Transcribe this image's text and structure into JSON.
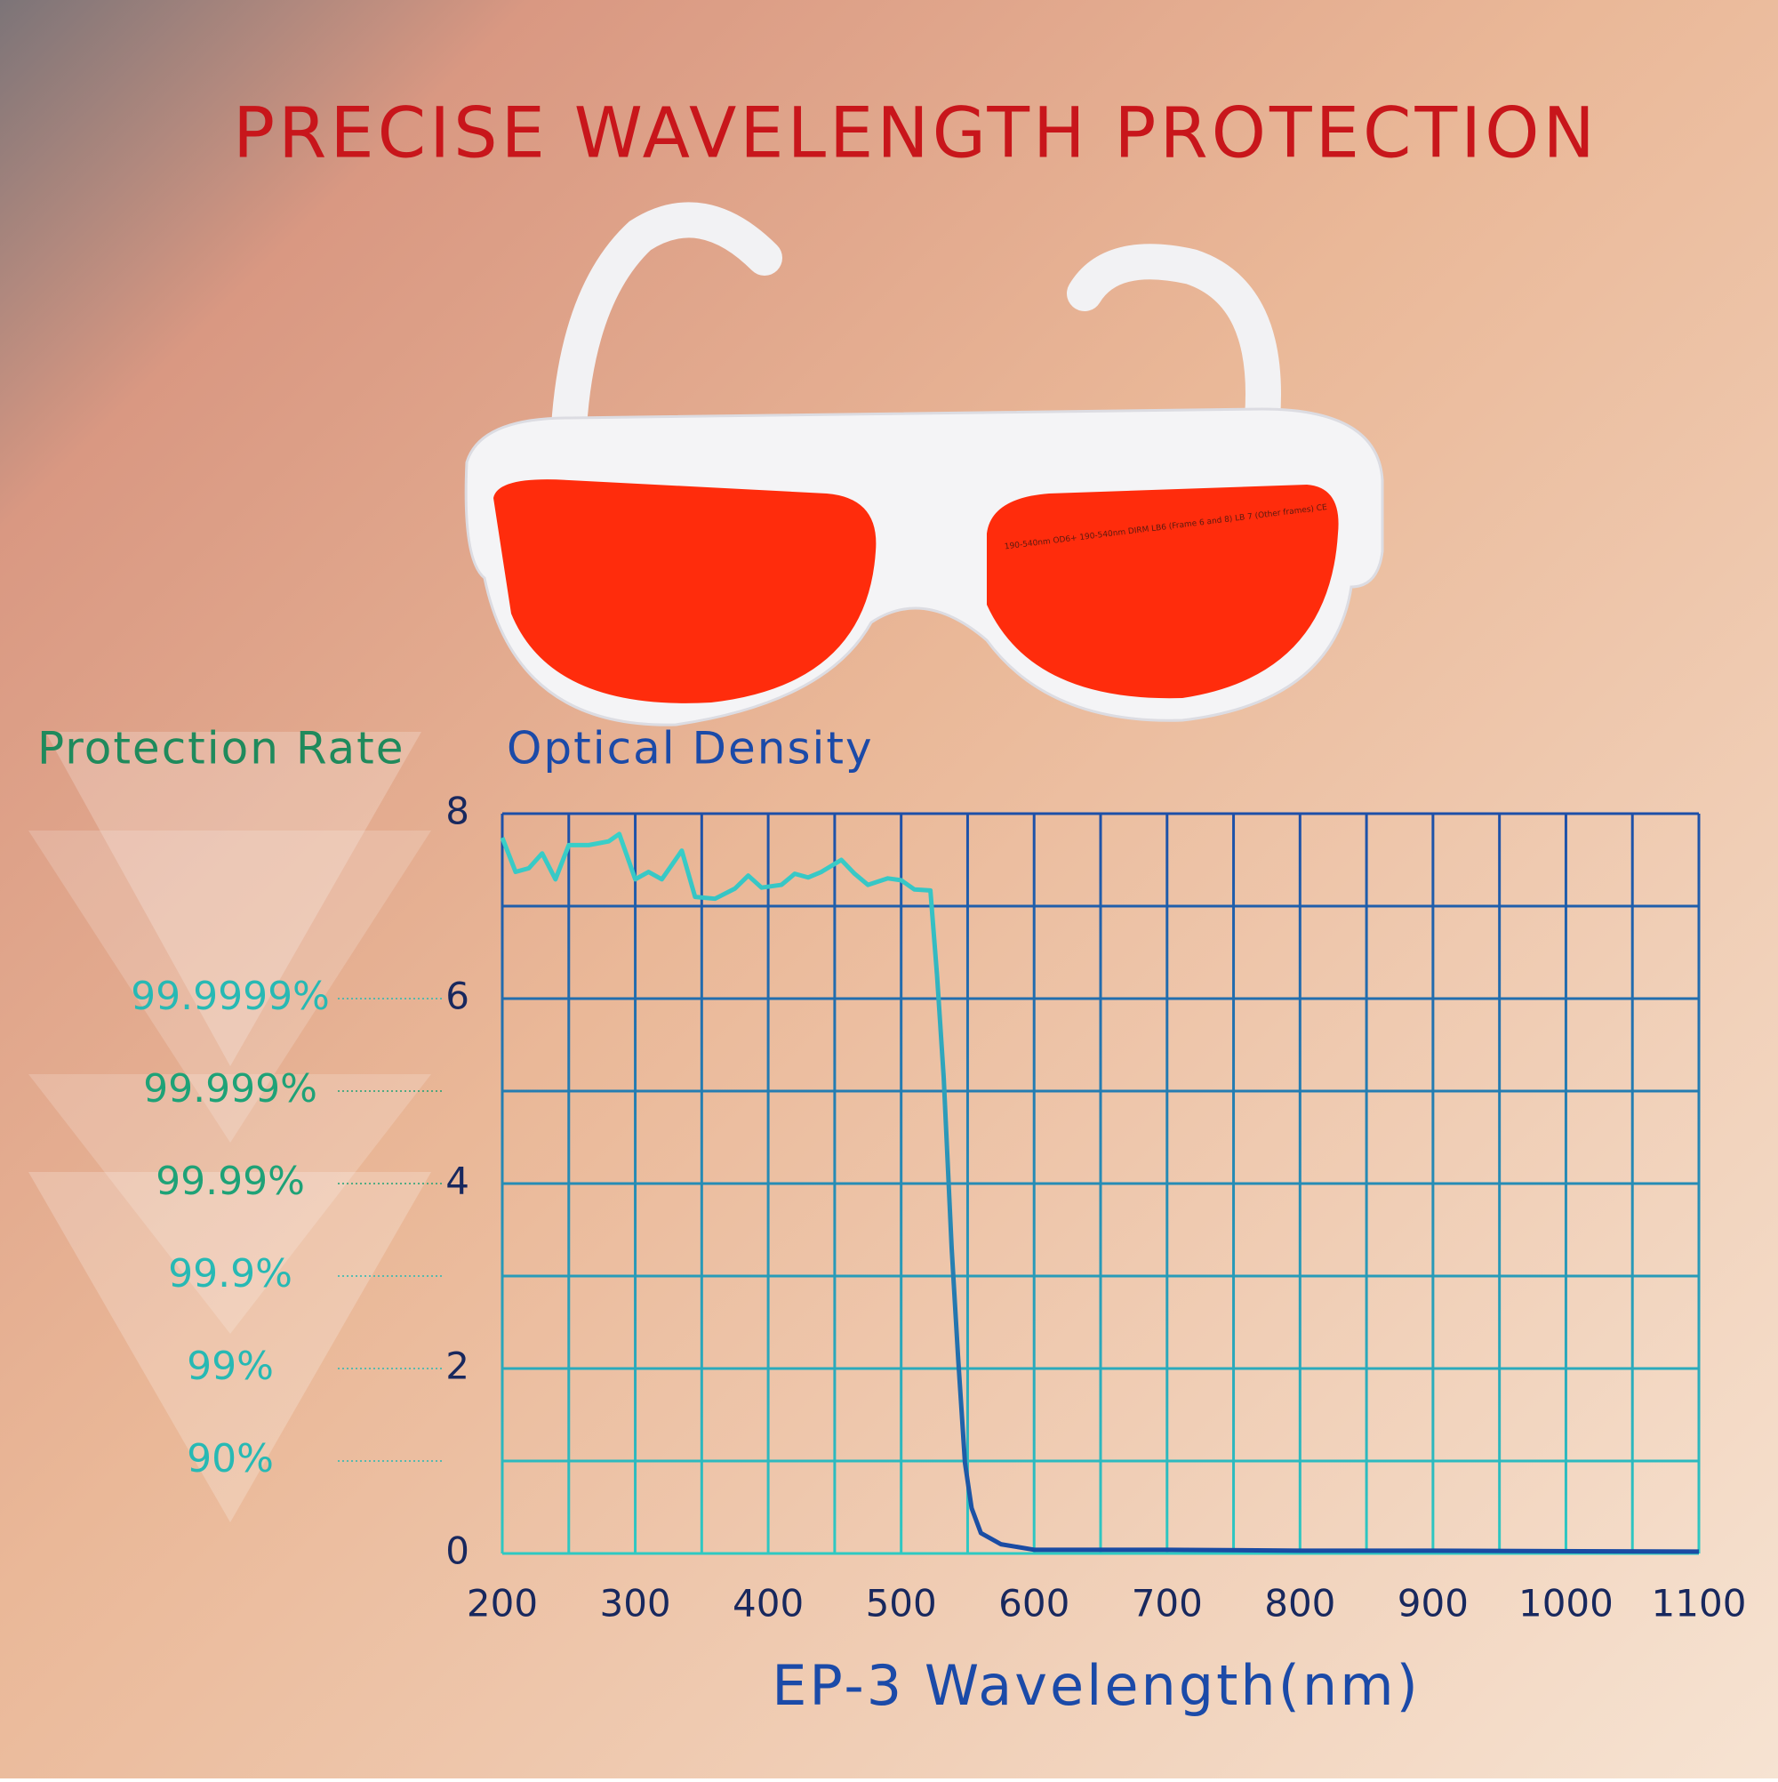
{
  "product": {
    "lens_marking": "190-540nm OD6+ 190-540nm DIRM LB6 (Frame 6 and 8) LB 7 (Other frames) CE"
  },
  "chart_data": {
    "type": "line",
    "title": "PRECISE WAVELENGTH PROTECTION",
    "ylabel": "Optical Density",
    "y2label": "Protection Rate",
    "xlabel": "EP-3 Wavelength(nm)",
    "x": [
      200,
      210,
      220,
      230,
      240,
      250,
      265,
      280,
      288,
      300,
      310,
      320,
      335,
      345,
      360,
      375,
      385,
      395,
      410,
      420,
      430,
      440,
      455,
      465,
      475,
      490,
      500,
      510,
      522,
      527,
      532,
      538,
      543,
      548,
      553,
      560,
      575,
      600,
      700,
      800,
      900,
      1100
    ],
    "values": [
      7.74,
      7.37,
      7.41,
      7.57,
      7.29,
      7.66,
      7.66,
      7.7,
      7.78,
      7.29,
      7.37,
      7.29,
      7.6,
      7.1,
      7.08,
      7.19,
      7.33,
      7.2,
      7.23,
      7.35,
      7.31,
      7.37,
      7.5,
      7.35,
      7.23,
      7.3,
      7.28,
      7.18,
      7.17,
      6.25,
      5.15,
      3.3,
      2.08,
      0.98,
      0.49,
      0.22,
      0.1,
      0.04,
      0.04,
      0.03,
      0.03,
      0.02
    ],
    "line_colors": [
      "#3ad4c9",
      "#1a4aa3"
    ],
    "grid_colors": [
      "#1d4fa8",
      "#2ec9c2"
    ],
    "xlim": [
      200,
      1100
    ],
    "xticks": [
      200,
      300,
      400,
      500,
      600,
      700,
      800,
      900,
      1000,
      1100
    ],
    "xminor": [
      250,
      350,
      450,
      550,
      650,
      750,
      850,
      950,
      1050
    ],
    "ylim": [
      0,
      8
    ],
    "yticks": [
      0,
      2,
      4,
      6,
      8
    ],
    "yminor": [
      1,
      3,
      5,
      7
    ],
    "y2lim": [
      0,
      8
    ],
    "y2ticks": [
      {
        "value": 6,
        "label": "99.9999%"
      },
      {
        "value": 5,
        "label": "99.999%"
      },
      {
        "value": 4,
        "label": "99.99%"
      },
      {
        "value": 3,
        "label": "99.9%"
      },
      {
        "value": 2,
        "label": "99%"
      },
      {
        "value": 1,
        "label": "90%"
      }
    ],
    "y2tick_colors": [
      "#27b9b4",
      "#1ea277",
      "#1ea277",
      "#27b9b4",
      "#27b9b4",
      "#27b9b4"
    ],
    "grid": true
  }
}
